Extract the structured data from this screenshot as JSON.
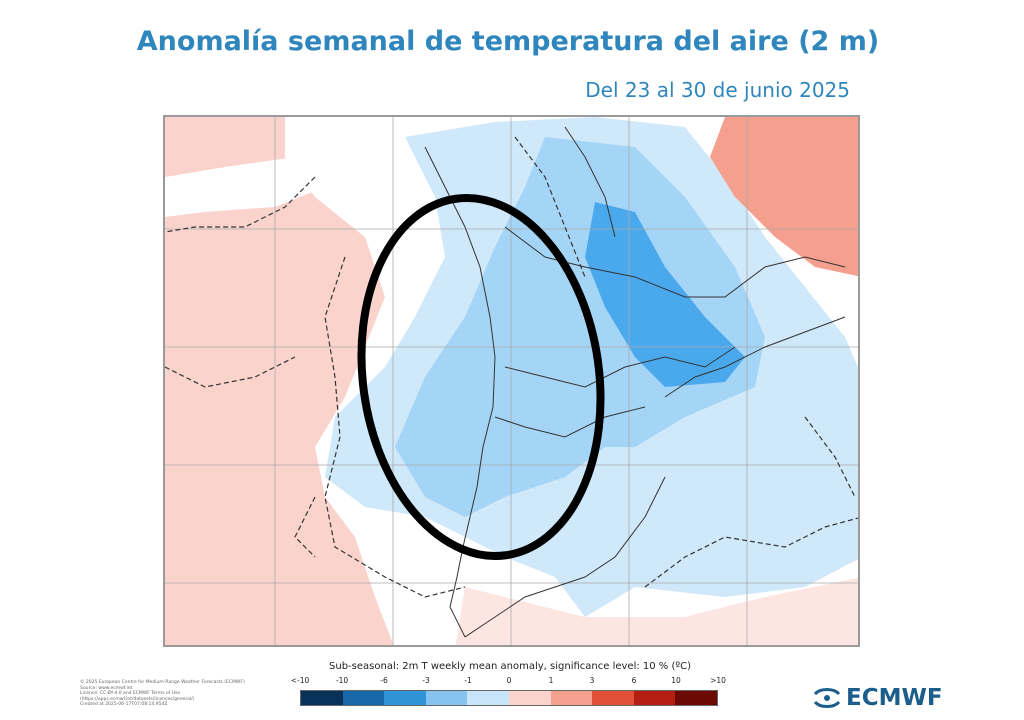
{
  "header": {
    "title": "Anomalía semanal de temperatura del aire (2 m)",
    "subtitle": "Del 23 al 30 de junio 2025"
  },
  "map": {
    "region": "Sudamérica austral",
    "annotation": "hand-drawn black ellipse around central and southern Chile",
    "colors": {
      "warm_light": "#fbd3cd",
      "warm_medium": "#f59f8e",
      "neutral": "#ffffff",
      "cool_light": "#cfe8fa",
      "cool_medium": "#a5d5f6",
      "cool_strong": "#4aa9ec"
    }
  },
  "legend": {
    "title": "Sub-seasonal: 2m T weekly mean anomaly, significance level: 10 % (ºC)",
    "labels": [
      "<-10",
      "-10",
      "-6",
      "-3",
      "-1",
      "0",
      "1",
      "3",
      "6",
      "10",
      ">10"
    ],
    "colors": [
      "#08325a",
      "#1668a8",
      "#2f93d8",
      "#86c4ef",
      "#c7e4f8",
      "#ffffff",
      "#fbd3cd",
      "#f59f8e",
      "#e3503a",
      "#b51f12",
      "#6b0a05"
    ]
  },
  "credits": {
    "lines": [
      "© 2025 European Centre for Medium-Range Weather Forecasts (ECMWF)",
      "Source: www.ecmwf.int",
      "Licence: CC-BY-4.0 and ECMWF Terms of Use (https://apps.ecmwf.int/datasets/licences/general/)",
      "Created at 2025-06-17T07:08:14.954Z"
    ]
  },
  "logo": {
    "text": "ECMWF",
    "icon": "ecmwf-logo-icon"
  }
}
